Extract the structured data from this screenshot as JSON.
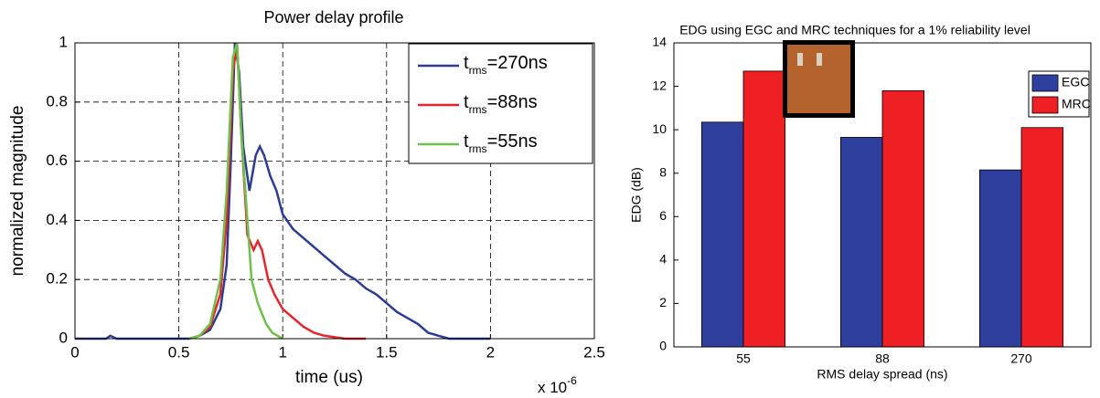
{
  "chart_data": [
    {
      "type": "line",
      "title": "Power delay profile",
      "x_label": "time (us)",
      "y_label": "normalized magnitude",
      "x_multiplier": "x 10-6",
      "xlim": [
        0,
        2.5
      ],
      "xticks": [
        0,
        0.5,
        1,
        1.5,
        2,
        2.5
      ],
      "ylim": [
        0,
        1
      ],
      "yticks": [
        0,
        0.2,
        0.4,
        0.6,
        0.8,
        1
      ],
      "grid": true,
      "legend": "upper right",
      "series": [
        {
          "name": "trms=270ns",
          "color": "#2b3c93",
          "x": [
            0,
            0.15,
            0.17,
            0.2,
            0.55,
            0.6,
            0.65,
            0.7,
            0.73,
            0.75,
            0.77,
            0.79,
            0.81,
            0.84,
            0.87,
            0.89,
            0.91,
            0.94,
            0.97,
            1.0,
            1.05,
            1.1,
            1.15,
            1.2,
            1.25,
            1.3,
            1.35,
            1.4,
            1.45,
            1.5,
            1.55,
            1.6,
            1.65,
            1.7,
            1.75,
            1.8,
            2.0
          ],
          "values": [
            0,
            0,
            0.01,
            0,
            0,
            0.01,
            0.03,
            0.1,
            0.25,
            0.6,
            1.0,
            0.9,
            0.65,
            0.5,
            0.62,
            0.65,
            0.62,
            0.55,
            0.5,
            0.42,
            0.37,
            0.34,
            0.31,
            0.28,
            0.25,
            0.22,
            0.2,
            0.17,
            0.15,
            0.12,
            0.09,
            0.07,
            0.05,
            0.02,
            0.01,
            0,
            0
          ]
        },
        {
          "name": "trms=88ns",
          "color": "#e8262a",
          "x": [
            0.55,
            0.6,
            0.65,
            0.7,
            0.73,
            0.76,
            0.78,
            0.8,
            0.83,
            0.86,
            0.88,
            0.9,
            0.93,
            0.96,
            1.0,
            1.05,
            1.1,
            1.15,
            1.2,
            1.3,
            1.4
          ],
          "values": [
            0,
            0.01,
            0.04,
            0.15,
            0.4,
            0.9,
            1.0,
            0.7,
            0.35,
            0.3,
            0.33,
            0.3,
            0.2,
            0.15,
            0.1,
            0.07,
            0.04,
            0.02,
            0.01,
            0,
            0
          ]
        },
        {
          "name": "trms=55ns",
          "color": "#6cc24a",
          "x": [
            0.55,
            0.6,
            0.65,
            0.7,
            0.73,
            0.76,
            0.78,
            0.8,
            0.83,
            0.85,
            0.88,
            0.92,
            0.95,
            1.0
          ],
          "values": [
            0,
            0.01,
            0.05,
            0.2,
            0.5,
            0.95,
            1.0,
            0.7,
            0.4,
            0.2,
            0.12,
            0.05,
            0.02,
            0
          ]
        }
      ]
    },
    {
      "type": "bar",
      "title": "EDG using EGC and MRC techniques for a 1% reliability level",
      "x_label": "RMS delay spread (ns)",
      "y_label": "EDG (dB)",
      "categories": [
        "55",
        "88",
        "270"
      ],
      "ylim": [
        0,
        14
      ],
      "yticks": [
        0,
        2,
        4,
        6,
        8,
        10,
        12,
        14
      ],
      "grid": false,
      "legend": "upper right",
      "series": [
        {
          "name": "EGC",
          "color": "#2e3f9e",
          "values": [
            10.35,
            9.65,
            8.15
          ]
        },
        {
          "name": "MRC",
          "color": "#ee2024",
          "values": [
            12.7,
            11.8,
            10.1
          ]
        }
      ]
    }
  ]
}
